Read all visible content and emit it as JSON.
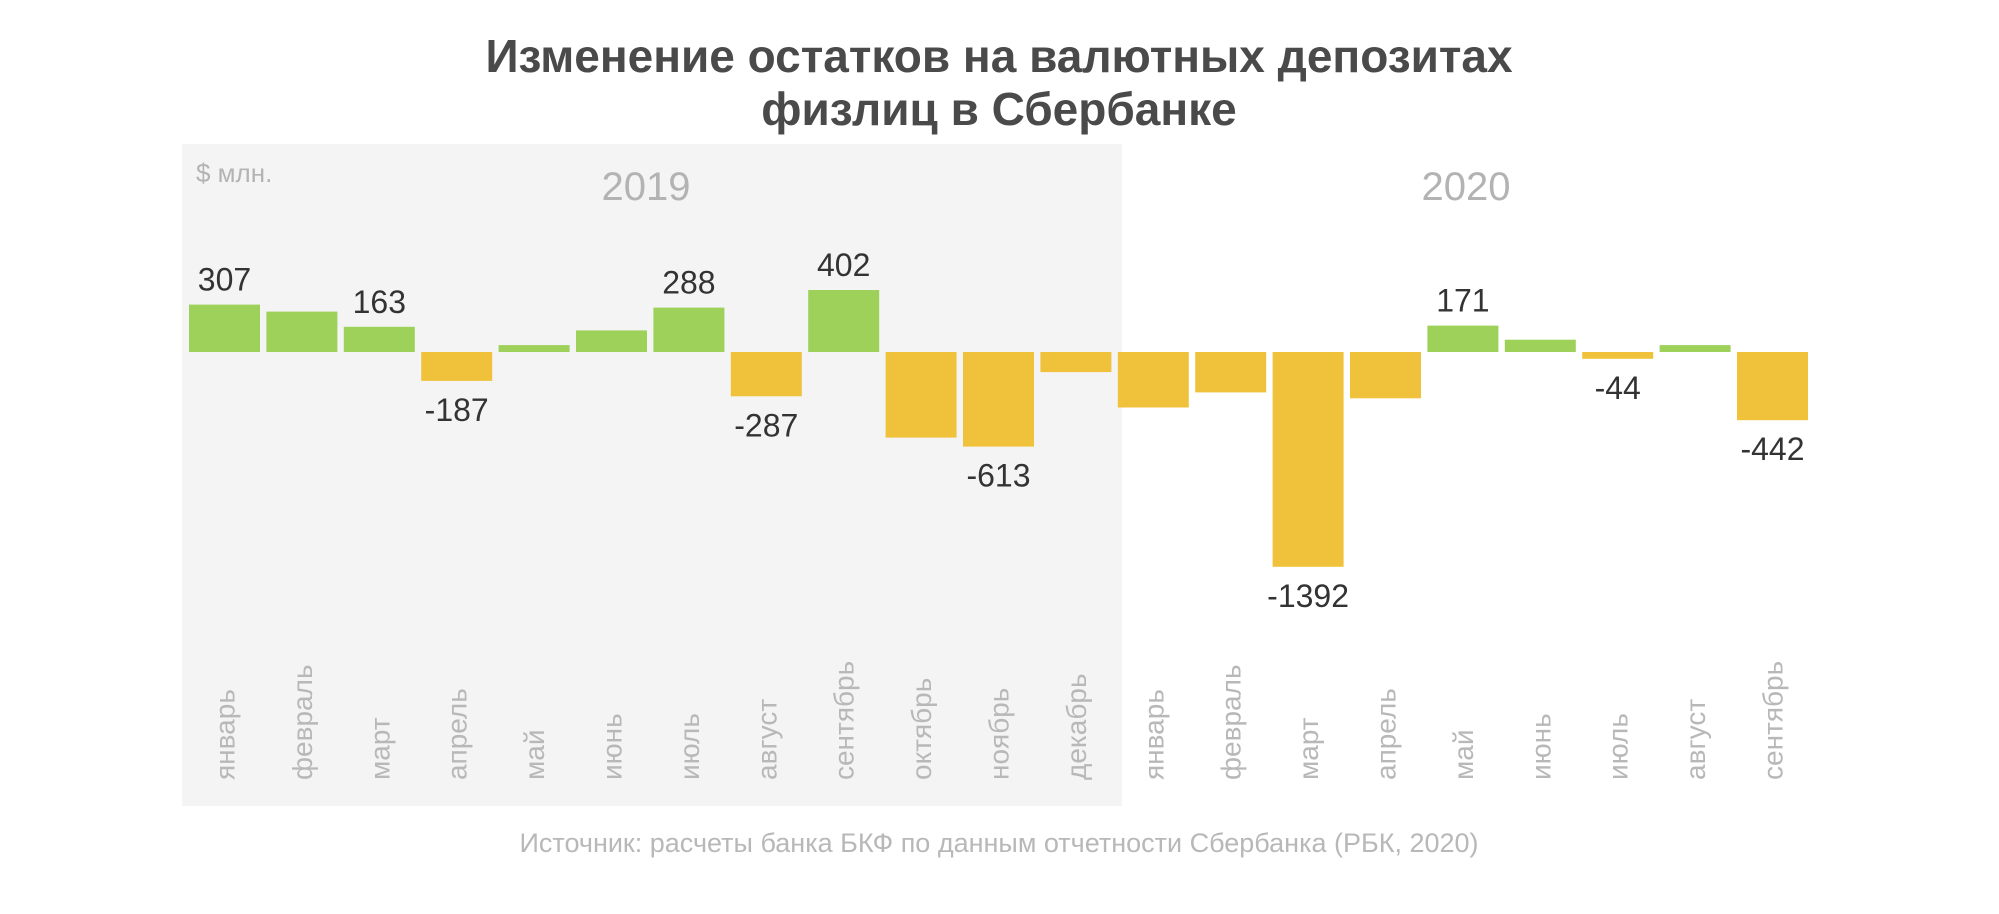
{
  "title": {
    "line1": "Изменение остатков на валютных депозитах",
    "line2": "физлиц в Сбербанке"
  },
  "unit": "$ млн.",
  "source": "Источник: расчеты банка БКФ по данным отчетности Сбербанка (РБК, 2020)",
  "colors": {
    "positive": "#9dd15a",
    "negative": "#f0c23c",
    "band": "#f4f4f4"
  },
  "chart_data": {
    "type": "bar",
    "groups": [
      {
        "year": "2019",
        "months": [
          "январь",
          "февраль",
          "март",
          "апрель",
          "май",
          "июнь",
          "июль",
          "август",
          "сентябрь",
          "октябрь",
          "ноябрь",
          "декабрь"
        ]
      },
      {
        "year": "2020",
        "months": [
          "январь",
          "февраль",
          "март",
          "апрель",
          "май",
          "июнь",
          "июль",
          "август",
          "сентябрь"
        ]
      }
    ],
    "categories": [
      "январь",
      "февраль",
      "март",
      "апрель",
      "май",
      "июнь",
      "июль",
      "август",
      "сентябрь",
      "октябрь",
      "ноябрь",
      "декабрь",
      "январь",
      "февраль",
      "март",
      "апрель",
      "май",
      "июнь",
      "июль",
      "август",
      "сентябрь"
    ],
    "values": [
      307,
      262,
      163,
      -187,
      45,
      140,
      288,
      -287,
      402,
      -555,
      -613,
      -130,
      -360,
      -262,
      -1392,
      -300,
      171,
      80,
      -44,
      45,
      -442
    ],
    "labels": [
      "307",
      "",
      "163",
      "-187",
      "",
      "",
      "288",
      "-287",
      "402",
      "",
      "-613",
      "",
      "",
      "",
      "-1392",
      "",
      "171",
      "",
      "-44",
      "",
      "-442"
    ],
    "ylim": [
      -1460,
      450
    ]
  }
}
